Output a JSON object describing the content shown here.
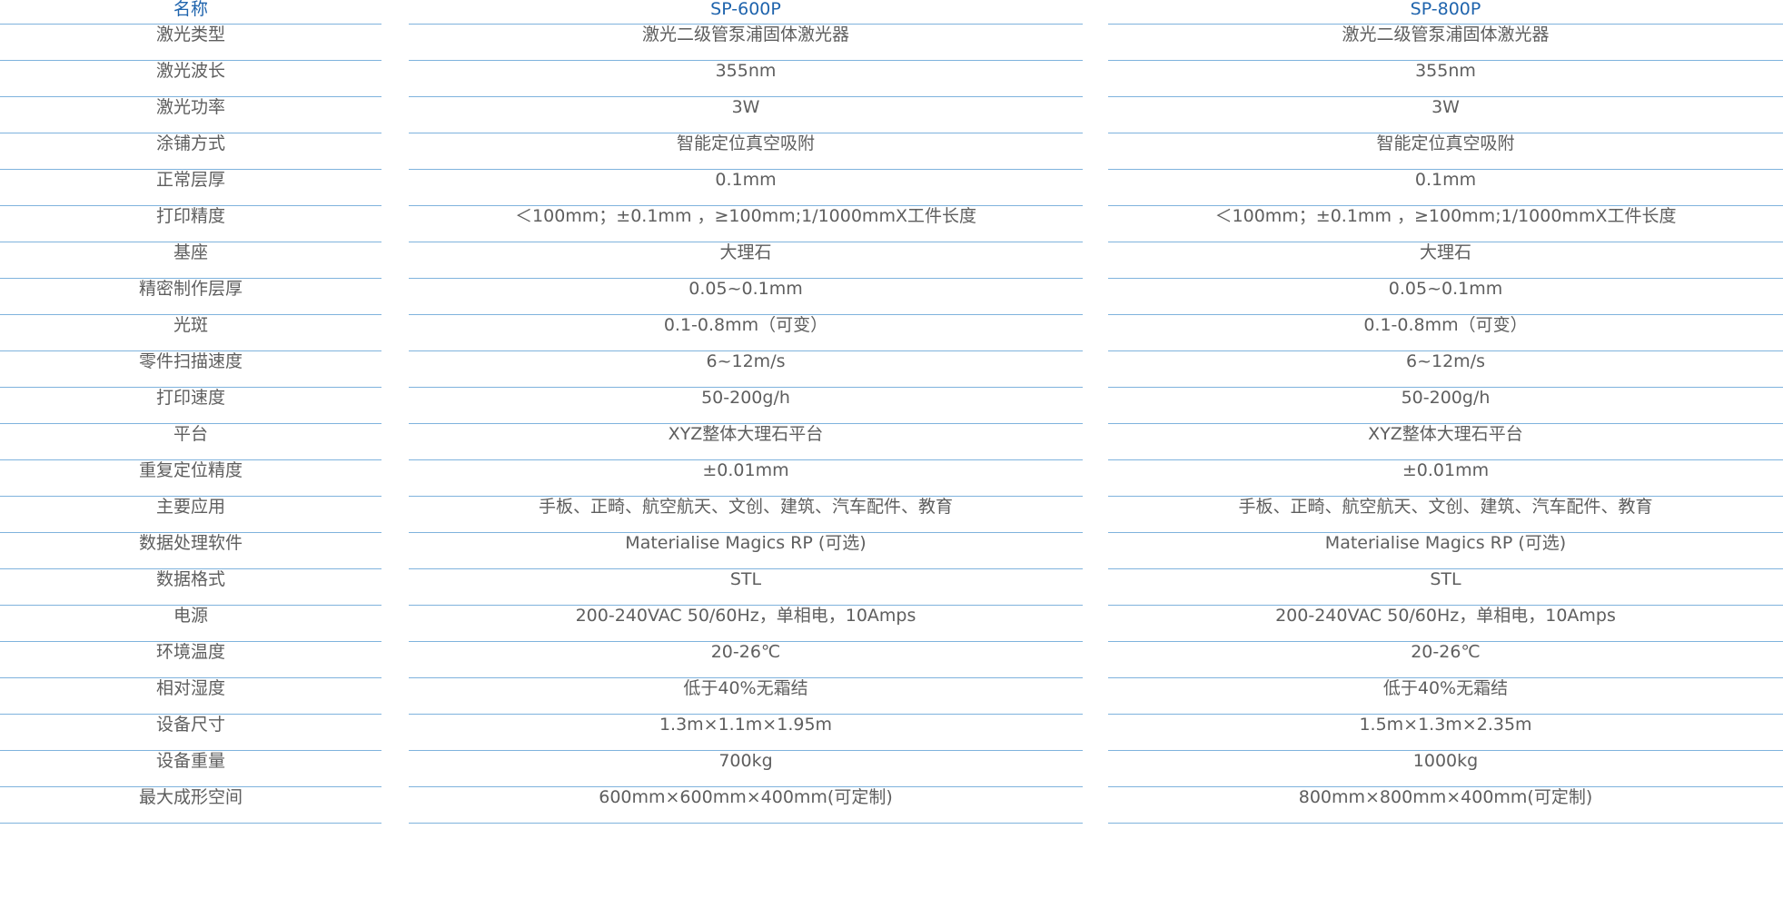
{
  "header": {
    "name_label": "名称",
    "model_a": "SP-600P",
    "model_b": "SP-800P"
  },
  "rows": [
    {
      "label": "激光类型",
      "a": "激光二级管泵浦固体激光器",
      "b": "激光二级管泵浦固体激光器"
    },
    {
      "label": "激光波长",
      "a": "355nm",
      "b": "355nm"
    },
    {
      "label": "激光功率",
      "a": "3W",
      "b": "3W"
    },
    {
      "label": "涂铺方式",
      "a": "智能定位真空吸附",
      "b": "智能定位真空吸附"
    },
    {
      "label": "正常层厚",
      "a": "0.1mm",
      "b": "0.1mm"
    },
    {
      "label": "打印精度",
      "a": "＜100mm；±0.1mm ，≥100mm;1/1000mmX工件长度",
      "b": "＜100mm；±0.1mm ，≥100mm;1/1000mmX工件长度"
    },
    {
      "label": "基座",
      "a": "大理石",
      "b": "大理石"
    },
    {
      "label": "精密制作层厚",
      "a": "0.05~0.1mm",
      "b": "0.05~0.1mm"
    },
    {
      "label": "光斑",
      "a": "0.1-0.8mm（可变）",
      "b": "0.1-0.8mm（可变）"
    },
    {
      "label": "零件扫描速度",
      "a": "6~12m/s",
      "b": "6~12m/s"
    },
    {
      "label": "打印速度",
      "a": "50-200g/h",
      "b": "50-200g/h"
    },
    {
      "label": "平台",
      "a": "XYZ整体大理石平台",
      "b": "XYZ整体大理石平台"
    },
    {
      "label": "重复定位精度",
      "a": "±0.01mm",
      "b": "±0.01mm"
    },
    {
      "label": "主要应用",
      "a": "手板、正畸、航空航天、文创、建筑、汽车配件、教育",
      "b": "手板、正畸、航空航天、文创、建筑、汽车配件、教育"
    },
    {
      "label": "数据处理软件",
      "a": "Materialise Magics RP (可选)",
      "b": "Materialise Magics RP (可选)"
    },
    {
      "label": "数据格式",
      "a": "STL",
      "b": "STL"
    },
    {
      "label": "电源",
      "a": "200-240VAC 50/60Hz，单相电，10Amps",
      "b": "200-240VAC 50/60Hz，单相电，10Amps"
    },
    {
      "label": "环境温度",
      "a": "20-26℃",
      "b": "20-26℃"
    },
    {
      "label": "相对湿度",
      "a": "低于40%无霜结",
      "b": "低于40%无霜结"
    },
    {
      "label": "设备尺寸",
      "a": "1.3m×1.1m×1.95m",
      "b": "1.5m×1.3m×2.35m"
    },
    {
      "label": "设备重量",
      "a": "700kg",
      "b": "1000kg"
    },
    {
      "label": "最大成形空间",
      "a": "600mm×600mm×400mm(可定制)",
      "b": "800mm×800mm×400mm(可定制)"
    }
  ]
}
